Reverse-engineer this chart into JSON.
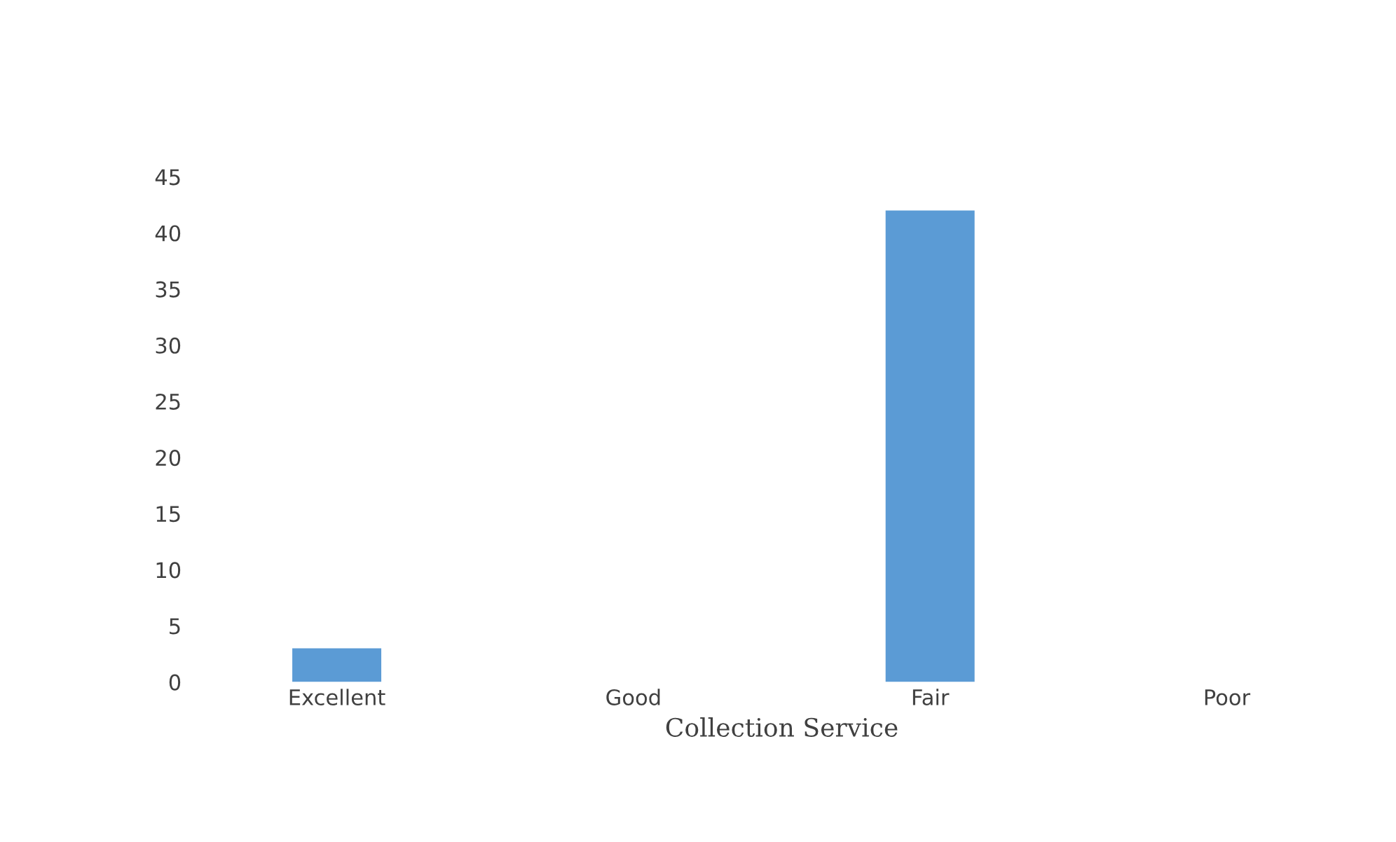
{
  "chart_data": {
    "type": "bar",
    "xlabel": "Collection Service",
    "categories": [
      "Excellent",
      "Good",
      "Fair",
      "Poor"
    ],
    "values": [
      3,
      0,
      42,
      0
    ],
    "color": "#5b9bd5",
    "ylim": [
      0,
      45
    ],
    "yticks": [
      0,
      5,
      10,
      15,
      20,
      25,
      30,
      35,
      40,
      45
    ],
    "grid": false,
    "legend": false
  }
}
